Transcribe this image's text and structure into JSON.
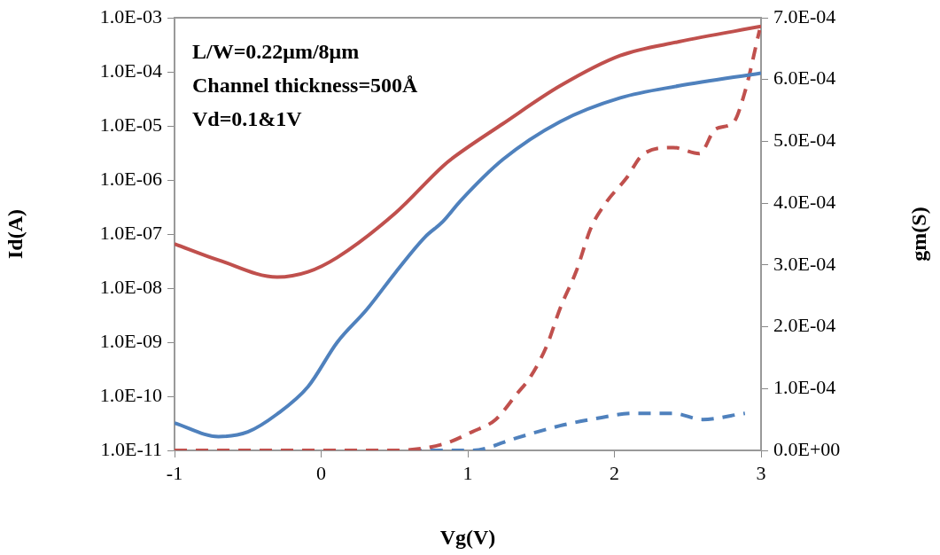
{
  "chart_data": {
    "type": "line",
    "xlabel": "Vg(V)",
    "ylabel": "Id(A)",
    "y2label": "gm(S)",
    "log": "y",
    "grid": false,
    "legend": false,
    "marker": "none",
    "xlim": [
      -1,
      3
    ],
    "xticks": [
      -1,
      0,
      1,
      2,
      3
    ],
    "ylim": [
      1e-11,
      0.001
    ],
    "yticks": [
      {
        "value": 1e-11,
        "label": "1.0E-11"
      },
      {
        "value": 1e-10,
        "label": "1.0E-10"
      },
      {
        "value": 1e-09,
        "label": "1.0E-09"
      },
      {
        "value": 1e-08,
        "label": "1.0E-08"
      },
      {
        "value": 1e-07,
        "label": "1.0E-07"
      },
      {
        "value": 1e-06,
        "label": "1.0E-06"
      },
      {
        "value": 1e-05,
        "label": "1.0E-05"
      },
      {
        "value": 0.0001,
        "label": "1.0E-04"
      },
      {
        "value": 0.001,
        "label": "1.0E-03"
      }
    ],
    "y2lim": [
      0,
      0.0007
    ],
    "y2ticks": [
      {
        "value": 0,
        "label": "0.0E+00"
      },
      {
        "value": 0.0001,
        "label": "1.0E-04"
      },
      {
        "value": 0.0002,
        "label": "2.0E-04"
      },
      {
        "value": 0.0003,
        "label": "3.0E-04"
      },
      {
        "value": 0.0004,
        "label": "4.0E-04"
      },
      {
        "value": 0.0005,
        "label": "5.0E-04"
      },
      {
        "value": 0.0006,
        "label": "6.0E-04"
      },
      {
        "value": 0.0007,
        "label": "7.0E-04"
      }
    ],
    "annotations": [
      "L/W=0.22μm/8μm",
      "Channel thickness=500Å",
      "Vd=0.1&1V"
    ],
    "series": [
      {
        "color": "#c0504d",
        "line_style": "solid",
        "x": [
          -1,
          -0.7,
          -0.3,
          -0.09,
          0.11,
          0.51,
          0.83,
          0.91,
          1.24,
          1.63,
          2.04,
          2.44,
          3
        ],
        "values": [
          6.6e-08,
          3.3e-08,
          1.6e-08,
          2e-08,
          3.7e-08,
          2.5e-07,
          1.8e-06,
          2.7e-06,
          1.1e-05,
          5.5e-05,
          0.0002,
          0.00036,
          0.00069
        ]
      },
      {
        "color": "#4f81bd",
        "line_style": "solid",
        "x": [
          -1,
          -0.7,
          -0.5,
          -0.3,
          -0.09,
          0.11,
          0.31,
          0.51,
          0.71,
          0.83,
          0.95,
          1.24,
          1.63,
          2.04,
          2.44,
          3
        ],
        "values": [
          3.2e-11,
          1.8e-11,
          2.2e-11,
          4.7e-11,
          1.5e-10,
          1e-09,
          4e-09,
          2e-08,
          8.9e-08,
          1.7e-07,
          4.1e-07,
          2.4e-06,
          1.2e-05,
          3.3e-05,
          5.5e-05,
          9.5e-05
        ]
      },
      {
        "color": "#c0504d",
        "line_style": "dashed",
        "axis": "y2",
        "x": [
          -1,
          0,
          0.5,
          0.83,
          1.03,
          1.19,
          1.33,
          1.43,
          1.54,
          1.63,
          1.74,
          1.84,
          1.94,
          2.08,
          2.2,
          2.4,
          2.58,
          2.69,
          2.81,
          2.89,
          2.99
        ],
        "values": [
          0,
          0,
          0,
          1e-05,
          3e-05,
          5e-05,
          9e-05,
          0.00012,
          0.00017,
          0.00023,
          0.00029,
          0.00036,
          0.0004,
          0.00044,
          0.00048,
          0.00049,
          0.00048,
          0.00052,
          0.00053,
          0.00058,
          0.00068
        ]
      },
      {
        "color": "#4f81bd",
        "line_style": "dashed",
        "axis": "y2",
        "x": [
          0.6,
          0.8,
          1.03,
          1.33,
          1.63,
          1.84,
          2.14,
          2.4,
          2.6,
          2.89
        ],
        "values": [
          0,
          0,
          0,
          2e-05,
          4e-05,
          5e-05,
          6e-05,
          6e-05,
          5e-05,
          6e-05
        ]
      }
    ]
  }
}
